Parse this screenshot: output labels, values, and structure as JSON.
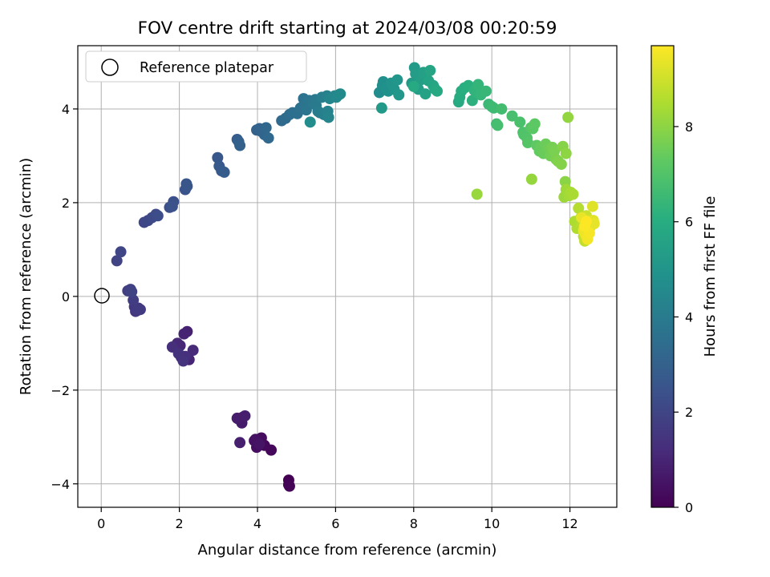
{
  "chart_data": {
    "type": "scatter",
    "title": "FOV centre drift starting at 2024/03/08 00:20:59",
    "xlabel": "Angular distance from reference (arcmin)",
    "ylabel": "Rotation from reference (arcmin)",
    "xlim": [
      -0.6,
      13.2
    ],
    "ylim": [
      -4.5,
      5.35
    ],
    "xticks": [
      "0",
      "2",
      "4",
      "6",
      "8",
      "10",
      "12"
    ],
    "yticks": [
      "−4",
      "−2",
      "0",
      "2",
      "4"
    ],
    "grid": true,
    "legend": {
      "position": "top-left",
      "entries": [
        "Reference platepar"
      ]
    },
    "reference_point": {
      "x": 0,
      "y": 0
    },
    "colorbar": {
      "label": "Hours from first FF file",
      "range": [
        0,
        9.7
      ],
      "ticks": [
        "0",
        "2",
        "4",
        "6",
        "8"
      ],
      "colormap": "viridis"
    },
    "points_x": [
      4.8,
      4.8,
      4.82,
      4.35,
      4.18,
      4.1,
      4.02,
      3.98,
      3.95,
      3.92,
      4.05,
      3.62,
      3.52,
      3.6,
      3.48,
      3.68,
      3.55,
      2.2,
      2.12,
      2.25,
      2.02,
      1.95,
      2.35,
      2.05,
      2.15,
      1.82,
      1.98,
      2.1,
      0.88,
      0.95,
      0.85,
      1.0,
      0.92,
      0.82,
      0.68,
      0.75,
      0.78,
      0.4,
      0.5,
      1.1,
      1.2,
      1.3,
      1.4,
      1.45,
      1.75,
      1.85,
      1.82,
      2.15,
      2.2,
      2.18,
      2.98,
      3.02,
      3.08,
      3.15,
      3.48,
      3.52,
      3.55,
      3.98,
      4.05,
      4.1,
      4.18,
      4.22,
      4.28,
      4.62,
      4.72,
      4.82,
      4.9,
      5.02,
      5.1,
      5.18,
      5.2,
      5.25,
      5.32,
      5.4,
      5.48,
      5.5,
      5.55,
      5.6,
      5.65,
      5.7,
      5.78,
      5.8,
      5.82,
      5.85,
      5.98,
      6.02,
      6.08,
      6.12,
      5.35,
      7.12,
      7.2,
      7.22,
      7.28,
      7.35,
      7.42,
      7.5,
      7.58,
      7.62,
      7.18,
      7.95,
      8.02,
      8.05,
      8.12,
      8.18,
      8.25,
      8.3,
      8.38,
      8.42,
      8.5,
      8.55,
      8.6,
      8.0,
      9.15,
      9.18,
      9.22,
      9.3,
      9.4,
      9.5,
      9.55,
      9.6,
      9.65,
      9.72,
      9.85,
      9.92,
      10.0,
      10.05,
      10.12,
      10.25,
      10.15,
      10.52,
      10.72,
      10.8,
      10.82,
      10.9,
      10.92,
      11.0,
      11.05,
      11.1,
      11.15,
      11.22,
      11.25,
      11.32,
      11.38,
      11.45,
      11.5,
      11.55,
      11.6,
      11.65,
      11.7,
      11.78,
      11.82,
      11.88,
      11.9,
      11.95,
      11.02,
      9.62,
      11.85,
      11.9,
      11.98,
      12.02,
      12.08,
      12.12,
      12.18,
      12.22,
      12.28,
      12.32,
      12.35,
      12.38,
      12.4,
      12.42,
      12.45,
      12.48,
      12.5,
      12.52,
      12.55,
      12.58,
      12.6,
      12.62,
      12.3,
      12.35,
      12.4,
      12.45,
      12.5,
      12.38,
      12.42
    ],
    "points_y": [
      -3.92,
      -4.02,
      -4.05,
      -3.28,
      -3.18,
      -3.02,
      -3.1,
      -3.22,
      -3.05,
      -3.08,
      -3.15,
      -2.58,
      -2.62,
      -2.7,
      -2.6,
      -2.55,
      -3.12,
      -0.75,
      -0.8,
      -1.35,
      -1.05,
      -1.0,
      -1.15,
      -1.3,
      -1.28,
      -1.08,
      -1.22,
      -1.38,
      -0.32,
      -0.25,
      -0.22,
      -0.28,
      -0.3,
      -0.08,
      0.12,
      0.15,
      0.1,
      0.76,
      0.95,
      1.58,
      1.62,
      1.68,
      1.75,
      1.72,
      1.9,
      2.02,
      1.92,
      2.28,
      2.35,
      2.4,
      2.96,
      2.78,
      2.68,
      2.65,
      3.35,
      3.3,
      3.22,
      3.55,
      3.58,
      3.52,
      3.45,
      3.6,
      3.38,
      3.75,
      3.8,
      3.88,
      3.92,
      3.9,
      4.02,
      4.22,
      4.1,
      3.98,
      4.18,
      4.12,
      4.2,
      4.08,
      3.95,
      3.92,
      4.25,
      3.88,
      4.28,
      3.95,
      3.82,
      4.22,
      4.28,
      4.25,
      4.3,
      4.32,
      3.72,
      4.35,
      4.5,
      4.58,
      4.45,
      4.38,
      4.55,
      4.42,
      4.62,
      4.3,
      4.02,
      4.55,
      4.88,
      4.75,
      4.42,
      4.62,
      4.78,
      4.32,
      4.6,
      4.82,
      4.5,
      4.42,
      4.38,
      4.48,
      4.15,
      4.25,
      4.38,
      4.45,
      4.5,
      4.18,
      4.4,
      4.35,
      4.52,
      4.3,
      4.38,
      4.1,
      4.05,
      4.02,
      3.68,
      4.0,
      3.65,
      3.85,
      3.72,
      3.5,
      3.45,
      3.38,
      3.28,
      3.6,
      3.58,
      3.68,
      3.22,
      3.1,
      3.18,
      3.05,
      3.25,
      3.15,
      3.0,
      3.18,
      3.1,
      2.92,
      2.88,
      2.82,
      3.2,
      2.45,
      3.05,
      3.82,
      2.5,
      2.18,
      2.12,
      2.28,
      2.15,
      2.22,
      2.18,
      1.6,
      1.45,
      1.88,
      1.68,
      1.52,
      1.28,
      1.18,
      1.45,
      1.72,
      1.55,
      1.42,
      1.62,
      1.48,
      1.58,
      1.92,
      1.62,
      1.55,
      1.68,
      1.4,
      1.32,
      1.22,
      1.35,
      1.5,
      1.6
    ]
  }
}
